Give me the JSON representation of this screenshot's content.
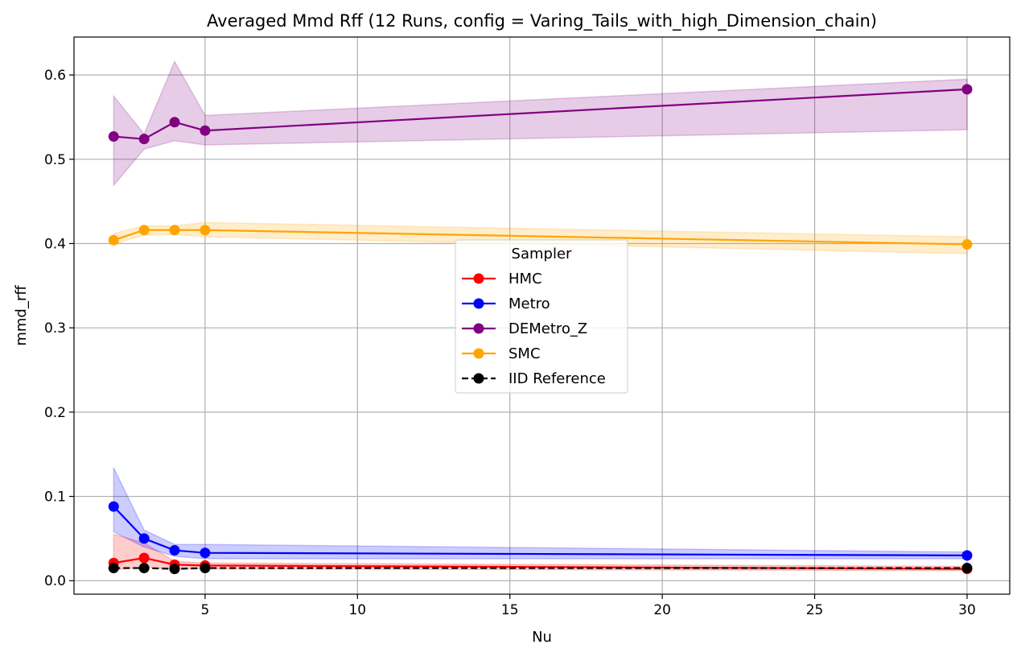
{
  "chart_data": {
    "type": "line",
    "title": "Averaged Mmd Rff (12 Runs, config = Varing_Tails_with_high_Dimension_chain)",
    "xlabel": "Nu",
    "ylabel": "mmd_rff",
    "xlim": [
      0.7,
      31.4
    ],
    "ylim": [
      -0.016,
      0.645
    ],
    "xticks": [
      5,
      10,
      15,
      20,
      25,
      30
    ],
    "yticks": [
      0.0,
      0.1,
      0.2,
      0.3,
      0.4,
      0.5,
      0.6
    ],
    "xtick_labels": [
      "5",
      "10",
      "15",
      "20",
      "25",
      "30"
    ],
    "ytick_labels": [
      "0.0",
      "0.1",
      "0.2",
      "0.3",
      "0.4",
      "0.5",
      "0.6"
    ],
    "grid": true,
    "legend": {
      "title": "Sampler",
      "placement": "center"
    },
    "x": [
      2,
      3,
      4,
      5,
      30
    ],
    "series": [
      {
        "name": "HMC",
        "color": "#ff0000",
        "linestyle": "solid",
        "values": [
          0.021,
          0.027,
          0.019,
          0.018,
          0.014
        ],
        "lower": [
          0.013,
          0.016,
          0.014,
          0.014,
          0.012
        ],
        "upper": [
          0.055,
          0.045,
          0.023,
          0.021,
          0.017
        ]
      },
      {
        "name": "Metro",
        "color": "#0000ff",
        "linestyle": "solid",
        "values": [
          0.088,
          0.05,
          0.036,
          0.033,
          0.03
        ],
        "lower": [
          0.058,
          0.04,
          0.029,
          0.026,
          0.026
        ],
        "upper": [
          0.134,
          0.06,
          0.043,
          0.043,
          0.034
        ]
      },
      {
        "name": "DEMetro_Z",
        "color": "#800080",
        "linestyle": "solid",
        "values": [
          0.527,
          0.524,
          0.544,
          0.534,
          0.583
        ],
        "lower": [
          0.469,
          0.512,
          0.522,
          0.517,
          0.535
        ],
        "upper": [
          0.575,
          0.53,
          0.616,
          0.552,
          0.595
        ]
      },
      {
        "name": "SMC",
        "color": "#ffa500",
        "linestyle": "solid",
        "values": [
          0.404,
          0.416,
          0.416,
          0.416,
          0.399
        ],
        "lower": [
          0.399,
          0.41,
          0.411,
          0.408,
          0.388
        ],
        "upper": [
          0.412,
          0.421,
          0.421,
          0.425,
          0.408
        ]
      },
      {
        "name": "IID Reference",
        "color": "#000000",
        "linestyle": "dashed",
        "values": [
          0.015,
          0.015,
          0.014,
          0.015,
          0.015
        ]
      }
    ]
  }
}
